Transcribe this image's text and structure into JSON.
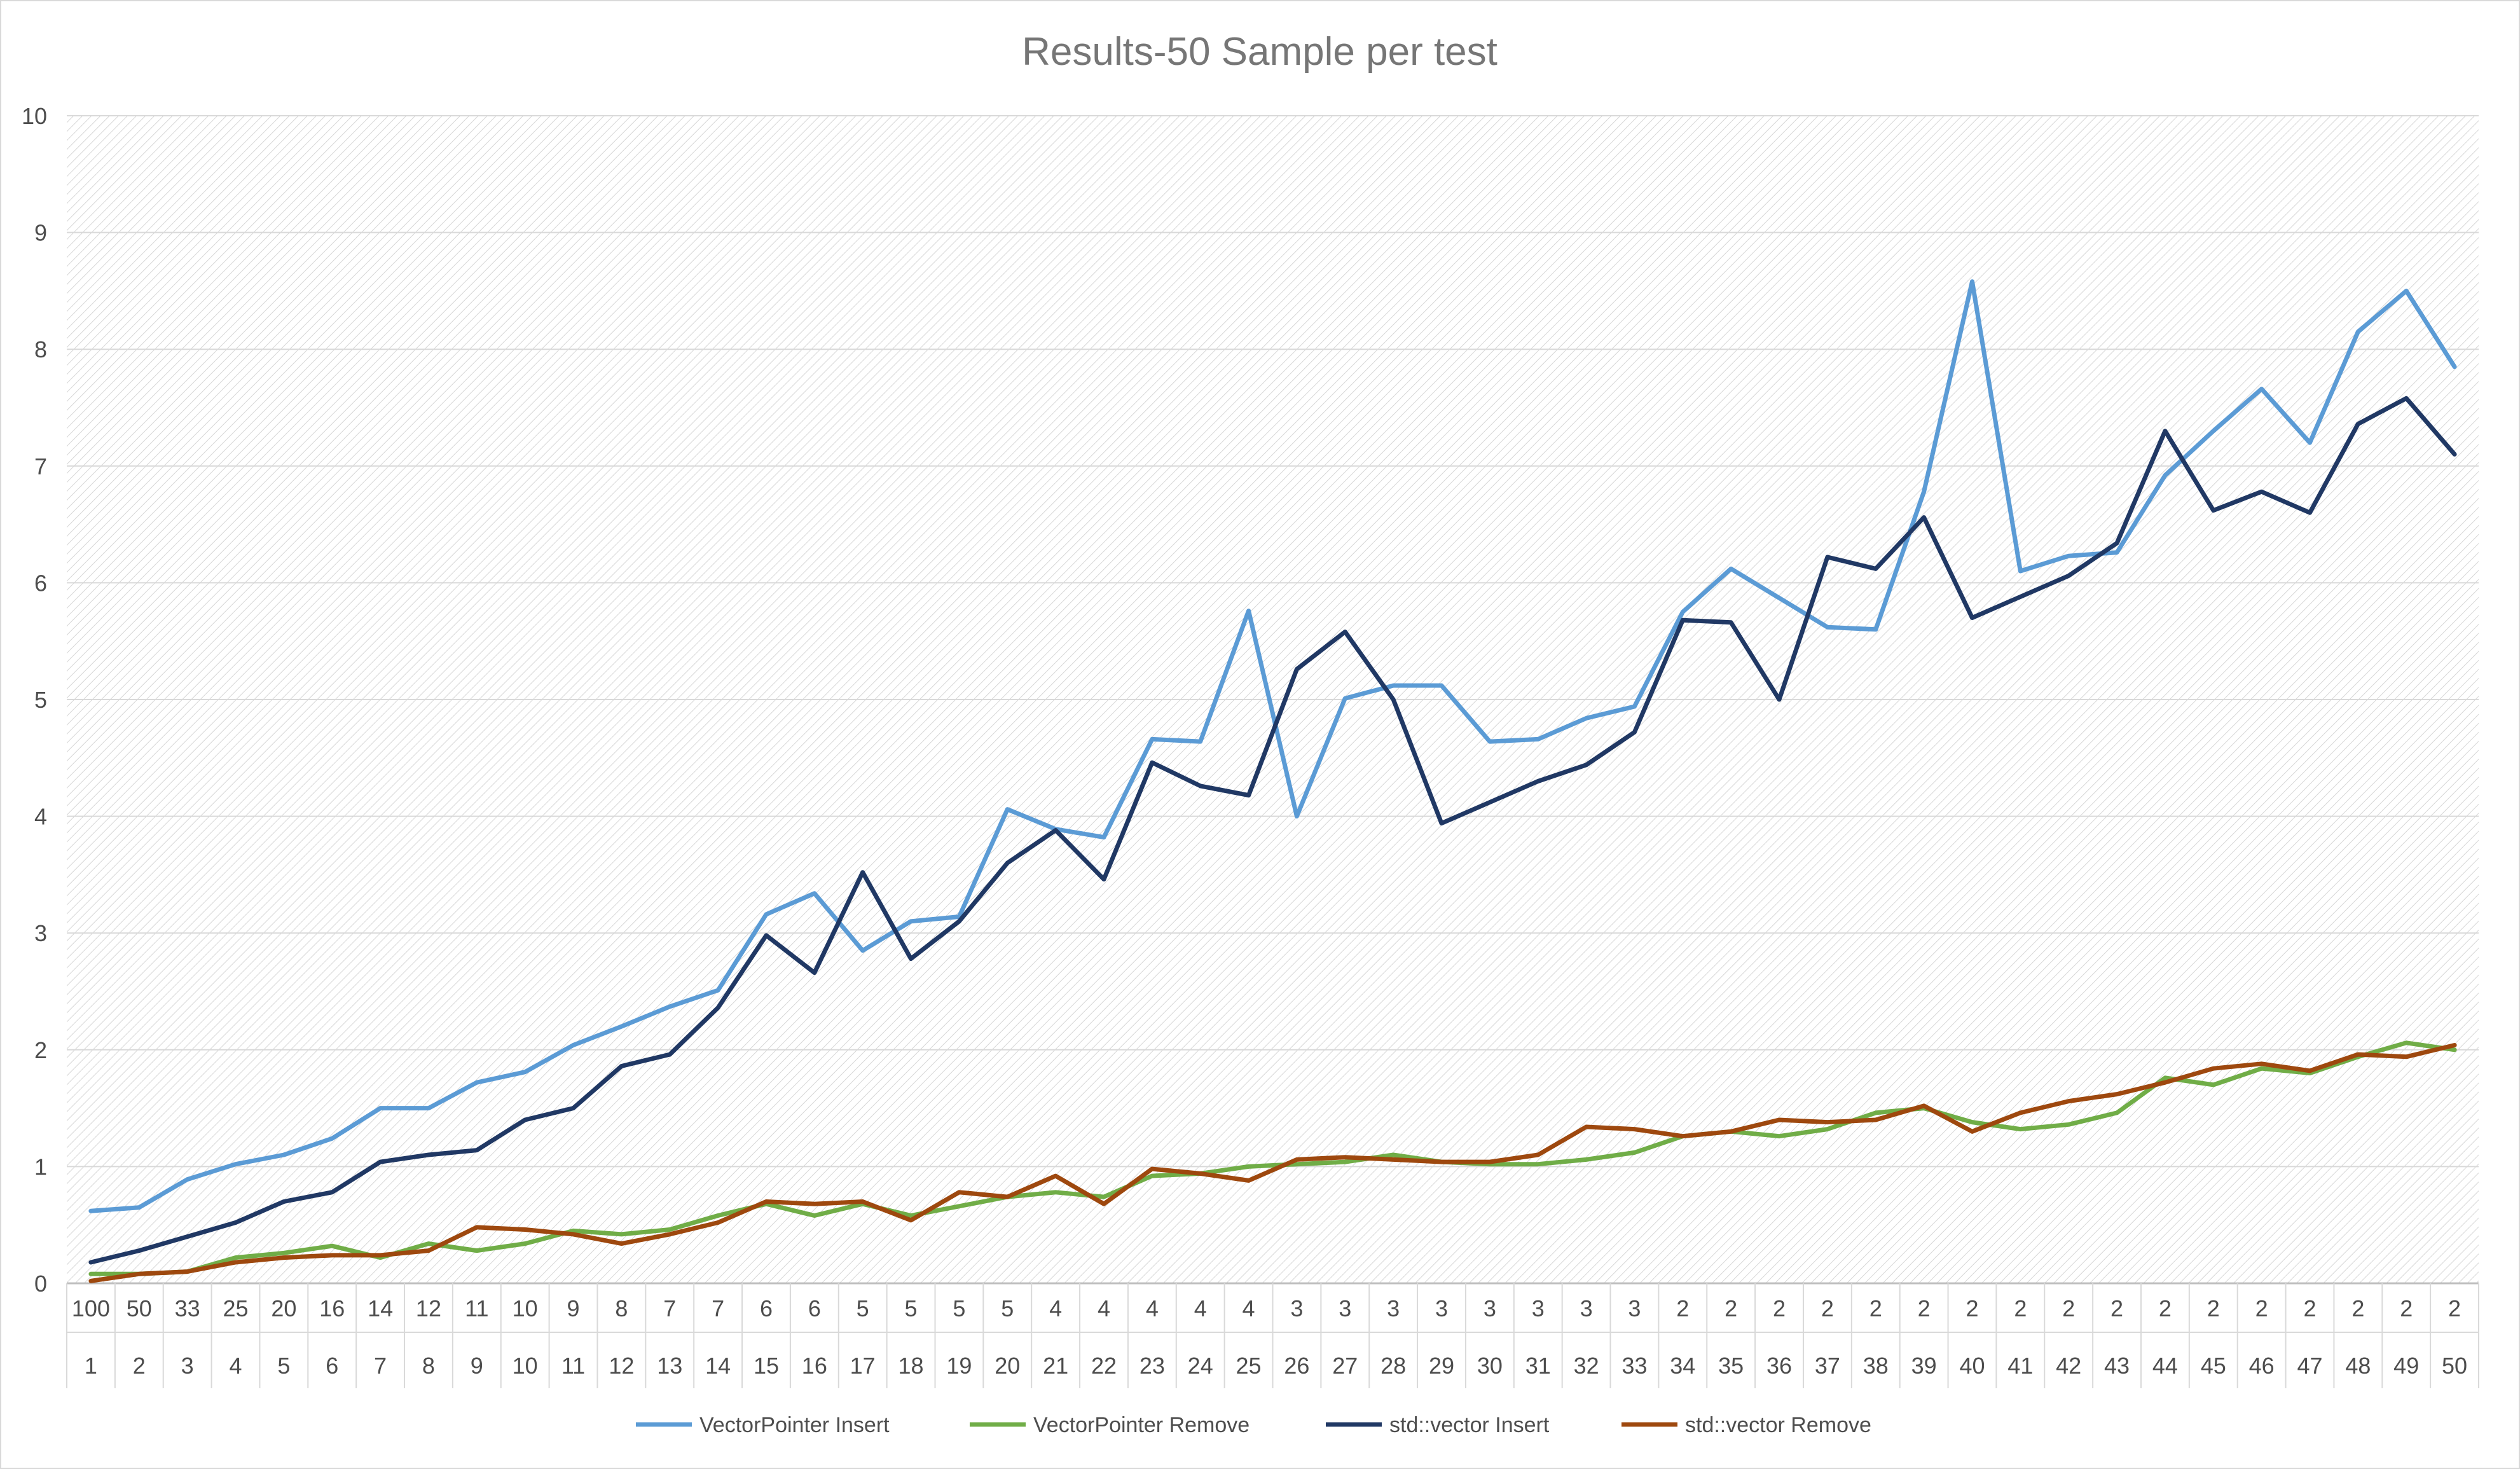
{
  "chart_data": {
    "type": "line",
    "title": "Results-50 Sample per test",
    "xlabel": "",
    "ylabel": "",
    "ylim": [
      0,
      10
    ],
    "yticks": [
      0,
      1,
      2,
      3,
      4,
      5,
      6,
      7,
      8,
      9,
      10
    ],
    "grid": true,
    "legend_position": "bottom",
    "categories_top": [
      "100",
      "50",
      "33",
      "25",
      "20",
      "16",
      "14",
      "12",
      "11",
      "10",
      "9",
      "8",
      "7",
      "7",
      "6",
      "6",
      "5",
      "5",
      "5",
      "5",
      "4",
      "4",
      "4",
      "4",
      "4",
      "3",
      "3",
      "3",
      "3",
      "3",
      "3",
      "3",
      "3",
      "2",
      "2",
      "2",
      "2",
      "2",
      "2",
      "2",
      "2",
      "2",
      "2",
      "2",
      "2",
      "2",
      "2",
      "2",
      "2",
      "2"
    ],
    "categories_bottom": [
      "1",
      "2",
      "3",
      "4",
      "5",
      "6",
      "7",
      "8",
      "9",
      "10",
      "11",
      "12",
      "13",
      "14",
      "15",
      "16",
      "17",
      "18",
      "19",
      "20",
      "21",
      "22",
      "23",
      "24",
      "25",
      "26",
      "27",
      "28",
      "29",
      "30",
      "31",
      "32",
      "33",
      "34",
      "35",
      "36",
      "37",
      "38",
      "39",
      "40",
      "41",
      "42",
      "43",
      "44",
      "45",
      "46",
      "47",
      "48",
      "49",
      "50"
    ],
    "series": [
      {
        "name": "VectorPointer Insert",
        "color": "#5b9bd5",
        "values": [
          0.62,
          0.65,
          0.89,
          1.02,
          1.1,
          1.24,
          1.5,
          1.5,
          1.72,
          1.81,
          2.04,
          2.2,
          2.37,
          2.51,
          3.16,
          3.34,
          2.85,
          3.1,
          3.14,
          4.06,
          3.89,
          3.82,
          4.66,
          4.64,
          5.76,
          4.0,
          5.01,
          5.12,
          5.12,
          4.64,
          4.66,
          4.84,
          4.94,
          5.75,
          6.12,
          5.87,
          5.62,
          5.6,
          6.78,
          8.58,
          6.1,
          6.23,
          6.26,
          6.92,
          7.3,
          7.66,
          7.2,
          8.15,
          8.5,
          7.85
        ]
      },
      {
        "name": "VectorPointer Remove",
        "color": "#70ad47",
        "values": [
          0.08,
          0.08,
          0.1,
          0.22,
          0.26,
          0.32,
          0.22,
          0.34,
          0.28,
          0.34,
          0.45,
          0.42,
          0.46,
          0.58,
          0.68,
          0.58,
          0.68,
          0.58,
          0.66,
          0.74,
          0.78,
          0.74,
          0.92,
          0.94,
          1.0,
          1.02,
          1.04,
          1.1,
          1.04,
          1.02,
          1.02,
          1.06,
          1.12,
          1.26,
          1.3,
          1.26,
          1.32,
          1.46,
          1.5,
          1.38,
          1.32,
          1.36,
          1.46,
          1.76,
          1.7,
          1.84,
          1.8,
          1.94,
          2.06,
          2.0
        ]
      },
      {
        "name": "std::vector Insert",
        "color": "#203864",
        "values": [
          0.18,
          0.28,
          0.4,
          0.52,
          0.7,
          0.78,
          1.04,
          1.1,
          1.14,
          1.4,
          1.5,
          1.86,
          1.96,
          2.36,
          2.98,
          2.66,
          3.52,
          2.78,
          3.1,
          3.6,
          3.88,
          3.46,
          4.46,
          4.26,
          4.18,
          5.26,
          5.58,
          5.0,
          3.94,
          4.12,
          4.3,
          4.44,
          4.72,
          5.68,
          5.66,
          5.0,
          6.22,
          6.12,
          6.56,
          5.7,
          5.88,
          6.06,
          6.34,
          7.3,
          6.62,
          6.78,
          6.6,
          7.36,
          7.58,
          7.1
        ]
      },
      {
        "name": "std::vector Remove",
        "color": "#9e480e",
        "values": [
          0.02,
          0.08,
          0.1,
          0.18,
          0.22,
          0.24,
          0.24,
          0.28,
          0.48,
          0.46,
          0.42,
          0.34,
          0.42,
          0.52,
          0.7,
          0.68,
          0.7,
          0.54,
          0.78,
          0.74,
          0.92,
          0.68,
          0.98,
          0.94,
          0.88,
          1.06,
          1.08,
          1.06,
          1.04,
          1.04,
          1.1,
          1.34,
          1.32,
          1.26,
          1.3,
          1.4,
          1.38,
          1.4,
          1.52,
          1.3,
          1.46,
          1.56,
          1.62,
          1.72,
          1.84,
          1.88,
          1.82,
          1.96,
          1.94,
          2.04
        ]
      }
    ]
  }
}
